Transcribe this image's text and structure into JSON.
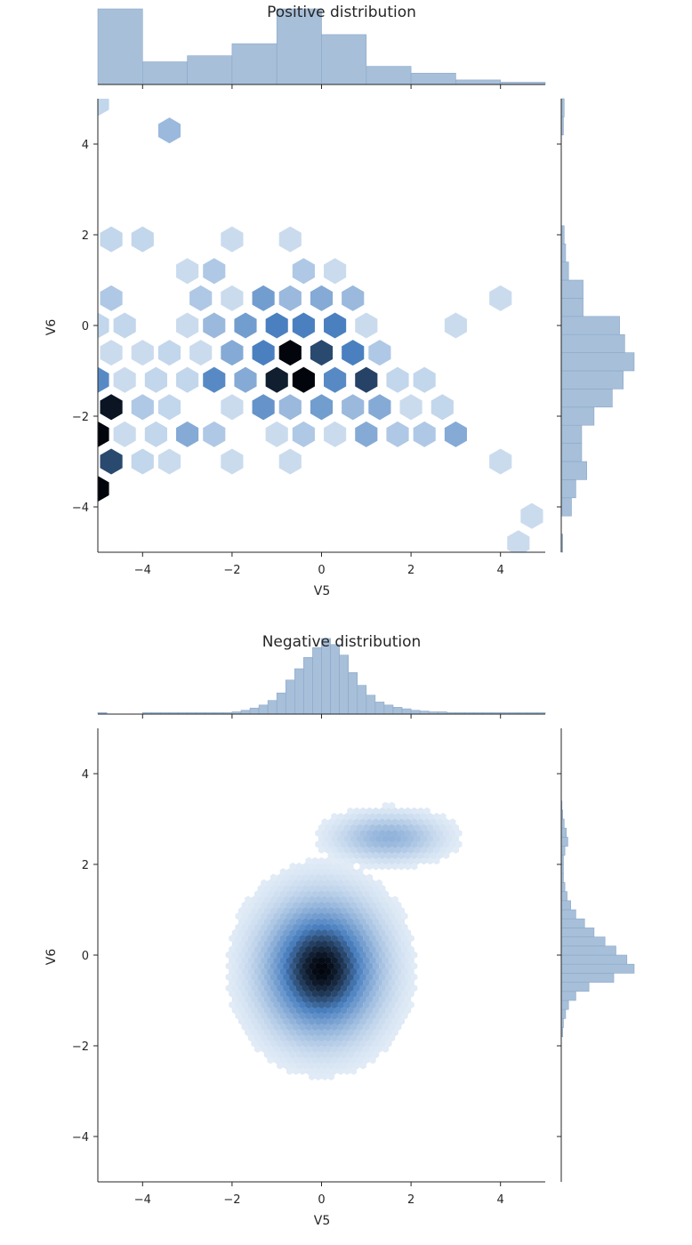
{
  "chart_data": [
    {
      "type": "hexbin",
      "title": "Positive distribution",
      "xlabel": "V5",
      "ylabel": "V6",
      "xlim": [
        -5,
        5
      ],
      "ylim": [
        -5,
        5
      ],
      "xticks": [
        -4,
        -2,
        0,
        2,
        4
      ],
      "yticks": [
        -4,
        -2,
        0,
        2,
        4
      ],
      "grid": false,
      "color": "#4a80c0",
      "hex_gridsize": 20,
      "hexbins": [
        {
          "x": -5.0,
          "y": 4.9,
          "d": 0.15
        },
        {
          "x": -3.4,
          "y": 4.3,
          "d": 0.3
        },
        {
          "x": -4.7,
          "y": 1.9,
          "d": 0.15
        },
        {
          "x": -4.0,
          "y": 1.9,
          "d": 0.15
        },
        {
          "x": -2.0,
          "y": 1.9,
          "d": 0.12
        },
        {
          "x": -0.7,
          "y": 1.9,
          "d": 0.12
        },
        {
          "x": -3.0,
          "y": 1.2,
          "d": 0.12
        },
        {
          "x": -2.4,
          "y": 1.2,
          "d": 0.22
        },
        {
          "x": -0.4,
          "y": 1.2,
          "d": 0.22
        },
        {
          "x": 0.3,
          "y": 1.2,
          "d": 0.12
        },
        {
          "x": -4.7,
          "y": 0.6,
          "d": 0.22
        },
        {
          "x": -2.7,
          "y": 0.6,
          "d": 0.22
        },
        {
          "x": -2.0,
          "y": 0.6,
          "d": 0.12
        },
        {
          "x": -1.3,
          "y": 0.6,
          "d": 0.45
        },
        {
          "x": -0.7,
          "y": 0.6,
          "d": 0.3
        },
        {
          "x": 0.0,
          "y": 0.6,
          "d": 0.38
        },
        {
          "x": 0.7,
          "y": 0.6,
          "d": 0.3
        },
        {
          "x": 4.0,
          "y": 0.6,
          "d": 0.12
        },
        {
          "x": -5.0,
          "y": 0.0,
          "d": 0.15
        },
        {
          "x": -4.4,
          "y": 0.0,
          "d": 0.15
        },
        {
          "x": -3.0,
          "y": 0.0,
          "d": 0.12
        },
        {
          "x": -2.4,
          "y": 0.0,
          "d": 0.3
        },
        {
          "x": -1.7,
          "y": 0.0,
          "d": 0.45
        },
        {
          "x": -1.0,
          "y": 0.0,
          "d": 0.6
        },
        {
          "x": -0.4,
          "y": 0.0,
          "d": 0.6
        },
        {
          "x": 0.3,
          "y": 0.0,
          "d": 0.6
        },
        {
          "x": 1.0,
          "y": 0.0,
          "d": 0.12
        },
        {
          "x": 3.0,
          "y": 0.0,
          "d": 0.12
        },
        {
          "x": -4.7,
          "y": -0.6,
          "d": 0.12
        },
        {
          "x": -4.0,
          "y": -0.6,
          "d": 0.12
        },
        {
          "x": -3.4,
          "y": -0.6,
          "d": 0.15
        },
        {
          "x": -2.7,
          "y": -0.6,
          "d": 0.12
        },
        {
          "x": -2.0,
          "y": -0.6,
          "d": 0.38
        },
        {
          "x": -1.3,
          "y": -0.6,
          "d": 0.6
        },
        {
          "x": -0.7,
          "y": -0.6,
          "d": 1.0
        },
        {
          "x": 0.0,
          "y": -0.6,
          "d": 0.78
        },
        {
          "x": 0.7,
          "y": -0.6,
          "d": 0.6
        },
        {
          "x": 1.3,
          "y": -0.6,
          "d": 0.22
        },
        {
          "x": -5.0,
          "y": -1.2,
          "d": 0.55
        },
        {
          "x": -4.4,
          "y": -1.2,
          "d": 0.12
        },
        {
          "x": -3.7,
          "y": -1.2,
          "d": 0.15
        },
        {
          "x": -3.0,
          "y": -1.2,
          "d": 0.15
        },
        {
          "x": -2.4,
          "y": -1.2,
          "d": 0.55
        },
        {
          "x": -1.7,
          "y": -1.2,
          "d": 0.38
        },
        {
          "x": -1.0,
          "y": -1.2,
          "d": 0.92
        },
        {
          "x": -0.4,
          "y": -1.2,
          "d": 1.0
        },
        {
          "x": 0.3,
          "y": -1.2,
          "d": 0.55
        },
        {
          "x": 1.0,
          "y": -1.2,
          "d": 0.8
        },
        {
          "x": 1.7,
          "y": -1.2,
          "d": 0.15
        },
        {
          "x": 2.3,
          "y": -1.2,
          "d": 0.15
        },
        {
          "x": -4.7,
          "y": -1.8,
          "d": 0.95
        },
        {
          "x": -4.0,
          "y": -1.8,
          "d": 0.22
        },
        {
          "x": -3.4,
          "y": -1.8,
          "d": 0.15
        },
        {
          "x": -2.0,
          "y": -1.8,
          "d": 0.12
        },
        {
          "x": -1.3,
          "y": -1.8,
          "d": 0.5
        },
        {
          "x": -0.7,
          "y": -1.8,
          "d": 0.3
        },
        {
          "x": 0.0,
          "y": -1.8,
          "d": 0.45
        },
        {
          "x": 0.7,
          "y": -1.8,
          "d": 0.3
        },
        {
          "x": 1.3,
          "y": -1.8,
          "d": 0.38
        },
        {
          "x": 2.0,
          "y": -1.8,
          "d": 0.12
        },
        {
          "x": 2.7,
          "y": -1.8,
          "d": 0.15
        },
        {
          "x": -5.0,
          "y": -2.4,
          "d": 1.0
        },
        {
          "x": -4.4,
          "y": -2.4,
          "d": 0.12
        },
        {
          "x": -3.7,
          "y": -2.4,
          "d": 0.15
        },
        {
          "x": -3.0,
          "y": -2.4,
          "d": 0.38
        },
        {
          "x": -2.4,
          "y": -2.4,
          "d": 0.22
        },
        {
          "x": -1.0,
          "y": -2.4,
          "d": 0.12
        },
        {
          "x": -0.4,
          "y": -2.4,
          "d": 0.22
        },
        {
          "x": 0.3,
          "y": -2.4,
          "d": 0.12
        },
        {
          "x": 1.0,
          "y": -2.4,
          "d": 0.38
        },
        {
          "x": 1.7,
          "y": -2.4,
          "d": 0.22
        },
        {
          "x": 2.3,
          "y": -2.4,
          "d": 0.22
        },
        {
          "x": 3.0,
          "y": -2.4,
          "d": 0.38
        },
        {
          "x": -4.7,
          "y": -3.0,
          "d": 0.78
        },
        {
          "x": -4.0,
          "y": -3.0,
          "d": 0.15
        },
        {
          "x": -3.4,
          "y": -3.0,
          "d": 0.12
        },
        {
          "x": -2.0,
          "y": -3.0,
          "d": 0.12
        },
        {
          "x": -0.7,
          "y": -3.0,
          "d": 0.12
        },
        {
          "x": 4.0,
          "y": -3.0,
          "d": 0.12
        },
        {
          "x": -5.0,
          "y": -3.6,
          "d": 1.0
        },
        {
          "x": 4.7,
          "y": -4.2,
          "d": 0.12
        },
        {
          "x": 4.4,
          "y": -4.8,
          "d": 0.12
        }
      ],
      "marginal_x": {
        "bin_edges": [
          -5.0,
          -4.0,
          -3.0,
          -2.0,
          -1.0,
          0.0,
          1.0,
          2.0,
          3.0,
          4.0,
          5.0
        ],
        "heights": [
          1.0,
          0.3,
          0.38,
          0.54,
          0.54,
          0.66,
          0.24,
          0.15,
          0.06,
          0.03
        ],
        "extra_bins": [
          {
            "x0": -1.0,
            "x1": 0.0,
            "h": 1.0
          }
        ]
      },
      "marginal_y": {
        "bin_edges": [
          -5.0,
          -4.6,
          -4.2,
          -3.8,
          -3.4,
          -3.0,
          -2.6,
          -2.2,
          -1.8,
          -1.4,
          -1.0,
          -0.6,
          -0.2,
          0.2,
          0.6,
          1.0,
          1.4,
          1.8,
          2.2,
          2.6,
          3.0,
          3.4,
          3.8,
          4.2,
          4.6,
          5.0
        ],
        "heights": [
          0.02,
          0.0,
          0.14,
          0.2,
          0.35,
          0.28,
          0.28,
          0.45,
          0.7,
          0.85,
          1.0,
          0.87,
          0.8,
          0.3,
          0.3,
          0.1,
          0.06,
          0.04,
          0.0,
          0.0,
          0.0,
          0.0,
          0.0,
          0.03,
          0.04
        ]
      }
    },
    {
      "type": "hexbin",
      "title": "Negative distribution",
      "xlabel": "V5",
      "ylabel": "V6",
      "xlim": [
        -5,
        5
      ],
      "ylim": [
        -5,
        5
      ],
      "xticks": [
        -4,
        -2,
        0,
        2,
        4
      ],
      "yticks": [
        -4,
        -2,
        0,
        2,
        4
      ],
      "grid": false,
      "color": "#4a80c0",
      "hex_gridsize": 70,
      "density_clusters": [
        {
          "cx": 0.0,
          "cy": -0.3,
          "sx": 0.75,
          "sy": 0.85,
          "peak": 1.0,
          "points": 2600
        },
        {
          "cx": 1.5,
          "cy": 2.6,
          "sx": 0.7,
          "sy": 0.3,
          "peak": 0.28,
          "points": 380
        }
      ],
      "marginal_x": {
        "bin_edges": [
          -5.0,
          -4.8,
          -4.6,
          -4.4,
          -4.2,
          -4.0,
          -3.8,
          -3.6,
          -3.4,
          -3.2,
          -3.0,
          -2.8,
          -2.6,
          -2.4,
          -2.2,
          -2.0,
          -1.8,
          -1.6,
          -1.4,
          -1.2,
          -1.0,
          -0.8,
          -0.6,
          -0.4,
          -0.2,
          0.0,
          0.2,
          0.4,
          0.6,
          0.8,
          1.0,
          1.2,
          1.4,
          1.6,
          1.8,
          2.0,
          2.2,
          2.4,
          2.6,
          2.8,
          3.0,
          3.2,
          3.4,
          3.6,
          3.8,
          4.0,
          4.2,
          4.4,
          4.6,
          4.8,
          5.0
        ],
        "heights": [
          0.02,
          0.0,
          0.0,
          0.0,
          0.0,
          0.02,
          0.02,
          0.02,
          0.02,
          0.02,
          0.02,
          0.02,
          0.02,
          0.02,
          0.02,
          0.03,
          0.05,
          0.08,
          0.12,
          0.18,
          0.28,
          0.45,
          0.6,
          0.75,
          0.88,
          1.0,
          0.92,
          0.78,
          0.55,
          0.38,
          0.25,
          0.16,
          0.12,
          0.09,
          0.07,
          0.05,
          0.04,
          0.03,
          0.03,
          0.02,
          0.02,
          0.02,
          0.02,
          0.02,
          0.02,
          0.02,
          0.02,
          0.02,
          0.02,
          0.02
        ]
      },
      "marginal_y": {
        "bin_edges": [
          -5.0,
          -4.8,
          -4.6,
          -4.4,
          -4.2,
          -4.0,
          -3.8,
          -3.6,
          -3.4,
          -3.2,
          -3.0,
          -2.8,
          -2.6,
          -2.4,
          -2.2,
          -2.0,
          -1.8,
          -1.6,
          -1.4,
          -1.2,
          -1.0,
          -0.8,
          -0.6,
          -0.4,
          -0.2,
          0.0,
          0.2,
          0.4,
          0.6,
          0.8,
          1.0,
          1.2,
          1.4,
          1.6,
          1.8,
          2.0,
          2.2,
          2.4,
          2.6,
          2.8,
          3.0,
          3.2,
          3.4,
          3.6,
          3.8,
          4.0,
          4.2,
          4.4,
          4.6,
          4.8,
          5.0
        ],
        "heights": [
          0.0,
          0.0,
          0.0,
          0.0,
          0.0,
          0.0,
          0.0,
          0.0,
          0.0,
          0.0,
          0.0,
          0.0,
          0.0,
          0.0,
          0.0,
          0.0,
          0.02,
          0.03,
          0.06,
          0.1,
          0.2,
          0.38,
          0.72,
          1.0,
          0.9,
          0.75,
          0.6,
          0.45,
          0.32,
          0.2,
          0.13,
          0.08,
          0.05,
          0.03,
          0.03,
          0.03,
          0.05,
          0.09,
          0.07,
          0.04,
          0.02,
          0.01,
          0.0,
          0.0,
          0.0,
          0.0,
          0.0,
          0.0,
          0.0,
          0.0
        ]
      }
    }
  ]
}
